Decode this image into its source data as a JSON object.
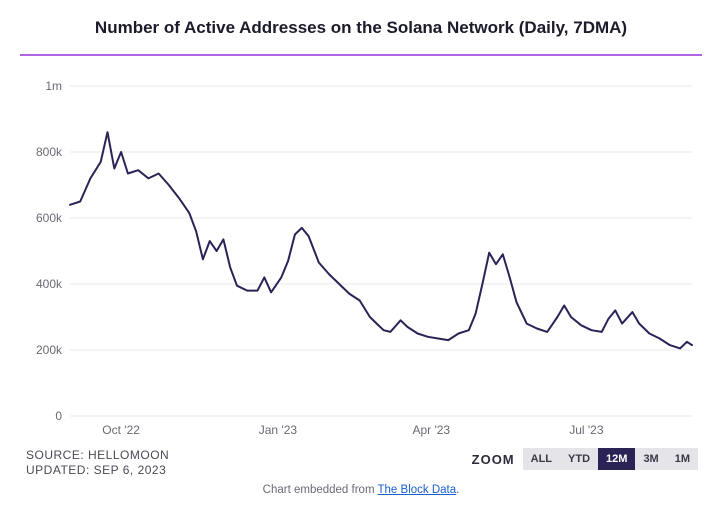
{
  "title": "Number of Active Addresses on the Solana Network (Daily, 7DMA)",
  "divider_color": "#b364e6",
  "chart": {
    "type": "line",
    "line_color": "#2a2356",
    "line_width": 2,
    "background_color": "#ffffff",
    "grid_color": "#e8e8ee",
    "ylim": [
      0,
      1000000
    ],
    "yticks": [
      {
        "v": 0,
        "label": "0"
      },
      {
        "v": 200000,
        "label": "200k"
      },
      {
        "v": 400000,
        "label": "400k"
      },
      {
        "v": 600000,
        "label": "600k"
      },
      {
        "v": 800000,
        "label": "800k"
      },
      {
        "v": 1000000,
        "label": "1m"
      }
    ],
    "xrange": [
      0,
      365
    ],
    "xticks": [
      {
        "v": 30,
        "label": "Oct '22"
      },
      {
        "v": 122,
        "label": "Jan '23"
      },
      {
        "v": 212,
        "label": "Apr '23"
      },
      {
        "v": 303,
        "label": "Jul '23"
      }
    ],
    "series": [
      {
        "x": 0,
        "y": 640000
      },
      {
        "x": 6,
        "y": 650000
      },
      {
        "x": 12,
        "y": 720000
      },
      {
        "x": 18,
        "y": 770000
      },
      {
        "x": 22,
        "y": 860000
      },
      {
        "x": 26,
        "y": 750000
      },
      {
        "x": 30,
        "y": 800000
      },
      {
        "x": 34,
        "y": 735000
      },
      {
        "x": 40,
        "y": 745000
      },
      {
        "x": 46,
        "y": 720000
      },
      {
        "x": 52,
        "y": 735000
      },
      {
        "x": 58,
        "y": 700000
      },
      {
        "x": 64,
        "y": 660000
      },
      {
        "x": 70,
        "y": 615000
      },
      {
        "x": 74,
        "y": 560000
      },
      {
        "x": 78,
        "y": 475000
      },
      {
        "x": 82,
        "y": 530000
      },
      {
        "x": 86,
        "y": 500000
      },
      {
        "x": 90,
        "y": 535000
      },
      {
        "x": 94,
        "y": 450000
      },
      {
        "x": 98,
        "y": 395000
      },
      {
        "x": 104,
        "y": 380000
      },
      {
        "x": 110,
        "y": 380000
      },
      {
        "x": 114,
        "y": 420000
      },
      {
        "x": 118,
        "y": 375000
      },
      {
        "x": 124,
        "y": 420000
      },
      {
        "x": 128,
        "y": 470000
      },
      {
        "x": 132,
        "y": 550000
      },
      {
        "x": 136,
        "y": 570000
      },
      {
        "x": 140,
        "y": 545000
      },
      {
        "x": 146,
        "y": 465000
      },
      {
        "x": 152,
        "y": 430000
      },
      {
        "x": 158,
        "y": 400000
      },
      {
        "x": 164,
        "y": 370000
      },
      {
        "x": 170,
        "y": 350000
      },
      {
        "x": 176,
        "y": 300000
      },
      {
        "x": 180,
        "y": 280000
      },
      {
        "x": 184,
        "y": 260000
      },
      {
        "x": 188,
        "y": 255000
      },
      {
        "x": 194,
        "y": 290000
      },
      {
        "x": 198,
        "y": 270000
      },
      {
        "x": 204,
        "y": 250000
      },
      {
        "x": 210,
        "y": 240000
      },
      {
        "x": 216,
        "y": 235000
      },
      {
        "x": 222,
        "y": 230000
      },
      {
        "x": 228,
        "y": 250000
      },
      {
        "x": 234,
        "y": 260000
      },
      {
        "x": 238,
        "y": 310000
      },
      {
        "x": 242,
        "y": 400000
      },
      {
        "x": 246,
        "y": 495000
      },
      {
        "x": 250,
        "y": 460000
      },
      {
        "x": 254,
        "y": 490000
      },
      {
        "x": 258,
        "y": 420000
      },
      {
        "x": 262,
        "y": 345000
      },
      {
        "x": 268,
        "y": 280000
      },
      {
        "x": 274,
        "y": 265000
      },
      {
        "x": 280,
        "y": 255000
      },
      {
        "x": 286,
        "y": 300000
      },
      {
        "x": 290,
        "y": 335000
      },
      {
        "x": 294,
        "y": 300000
      },
      {
        "x": 300,
        "y": 275000
      },
      {
        "x": 306,
        "y": 260000
      },
      {
        "x": 312,
        "y": 255000
      },
      {
        "x": 316,
        "y": 295000
      },
      {
        "x": 320,
        "y": 320000
      },
      {
        "x": 324,
        "y": 280000
      },
      {
        "x": 330,
        "y": 315000
      },
      {
        "x": 334,
        "y": 280000
      },
      {
        "x": 340,
        "y": 250000
      },
      {
        "x": 346,
        "y": 235000
      },
      {
        "x": 352,
        "y": 215000
      },
      {
        "x": 358,
        "y": 205000
      },
      {
        "x": 362,
        "y": 225000
      },
      {
        "x": 365,
        "y": 215000
      }
    ]
  },
  "meta": {
    "source_label": "SOURCE: HELLOMOON",
    "updated_label": "UPDATED: SEP 6, 2023"
  },
  "zoom": {
    "label": "ZOOM",
    "buttons": [
      {
        "label": "ALL",
        "active": false
      },
      {
        "label": "YTD",
        "active": false
      },
      {
        "label": "12M",
        "active": true
      },
      {
        "label": "3M",
        "active": false
      },
      {
        "label": "1M",
        "active": false
      }
    ]
  },
  "embed": {
    "prefix": "Chart embedded from ",
    "link_text": "The Block Data",
    "suffix": "."
  }
}
